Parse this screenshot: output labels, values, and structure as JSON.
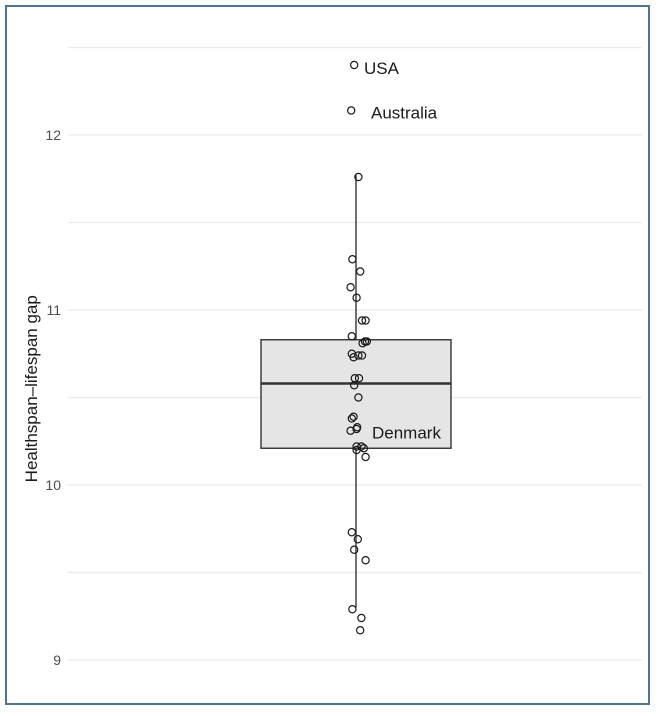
{
  "chart_data": {
    "type": "boxplot",
    "title": "",
    "xlabel": "",
    "ylabel": "Healthspan–lifespan gap",
    "ylim": [
      8.85,
      12.6
    ],
    "yticks": [
      9,
      10,
      11,
      12
    ],
    "ytick_labels": [
      "9",
      "10",
      "11",
      "12"
    ],
    "minor_gridlines": [
      9.5,
      10.5,
      11.5,
      12.5
    ],
    "grid": true,
    "box": {
      "q1": 10.21,
      "median": 10.58,
      "q3": 10.83,
      "whisker_low": 9.3,
      "whisker_high": 11.77,
      "fill": "#e5e5e5",
      "stroke": "#333333"
    },
    "points": [
      {
        "jitter": -0.03,
        "value": 12.4,
        "label": "USA"
      },
      {
        "jitter": -0.08,
        "value": 12.14,
        "label": "Australia"
      },
      {
        "jitter": 0.04,
        "value": 11.76
      },
      {
        "jitter": -0.06,
        "value": 11.29
      },
      {
        "jitter": 0.07,
        "value": 11.22
      },
      {
        "jitter": -0.09,
        "value": 11.13
      },
      {
        "jitter": 0.01,
        "value": 11.07
      },
      {
        "jitter": 0.1,
        "value": 10.94
      },
      {
        "jitter": 0.16,
        "value": 10.94
      },
      {
        "jitter": -0.07,
        "value": 10.85
      },
      {
        "jitter": 0.11,
        "value": 10.81
      },
      {
        "jitter": 0.15,
        "value": 10.82
      },
      {
        "jitter": 0.18,
        "value": 10.82
      },
      {
        "jitter": -0.07,
        "value": 10.75
      },
      {
        "jitter": -0.04,
        "value": 10.73
      },
      {
        "jitter": 0.04,
        "value": 10.74
      },
      {
        "jitter": 0.1,
        "value": 10.74
      },
      {
        "jitter": -0.02,
        "value": 10.61
      },
      {
        "jitter": 0.05,
        "value": 10.61
      },
      {
        "jitter": -0.03,
        "value": 10.57
      },
      {
        "jitter": 0.04,
        "value": 10.5
      },
      {
        "jitter": -0.04,
        "value": 10.39
      },
      {
        "jitter": -0.07,
        "value": 10.38
      },
      {
        "jitter": -0.09,
        "value": 10.31
      },
      {
        "jitter": 0.01,
        "value": 10.32
      },
      {
        "jitter": 0.02,
        "value": 10.33,
        "label": "Denmark"
      },
      {
        "jitter": 0.01,
        "value": 10.22
      },
      {
        "jitter": 0.01,
        "value": 10.2
      },
      {
        "jitter": 0.09,
        "value": 10.22
      },
      {
        "jitter": 0.13,
        "value": 10.21
      },
      {
        "jitter": 0.16,
        "value": 10.16
      },
      {
        "jitter": -0.07,
        "value": 9.73
      },
      {
        "jitter": 0.03,
        "value": 9.69
      },
      {
        "jitter": -0.03,
        "value": 9.63
      },
      {
        "jitter": 0.16,
        "value": 9.57
      },
      {
        "jitter": -0.06,
        "value": 9.29
      },
      {
        "jitter": 0.09,
        "value": 9.24
      },
      {
        "jitter": 0.07,
        "value": 9.17
      }
    ],
    "annotations": [
      {
        "text": "USA",
        "value": 12.4
      },
      {
        "text": "Australia",
        "value": 12.14
      },
      {
        "text": "Denmark",
        "value": 10.33
      }
    ],
    "colors": {
      "grid": "#ebebeb",
      "point_stroke": "#1a1a1a",
      "frame": "#4f7496"
    }
  }
}
